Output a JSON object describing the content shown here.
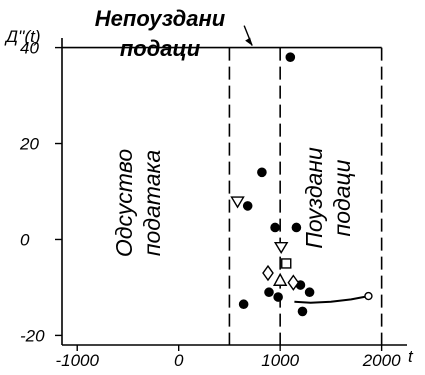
{
  "chart_data": {
    "type": "scatter",
    "title": "",
    "xlabel": "t",
    "ylabel": "Д''(t)",
    "xlim": [
      -1150,
      2250
    ],
    "ylim": [
      -22,
      42
    ],
    "x_ticks": [
      -1000,
      0,
      1000,
      2000
    ],
    "x_tick_labels": [
      "-1000",
      "0",
      "1000",
      "2000"
    ],
    "y_ticks": [
      -20,
      0,
      20,
      40
    ],
    "y_tick_labels": [
      "-20",
      "0",
      "20",
      "40"
    ],
    "reference_line_y": 40,
    "dashed_lines_x": [
      500,
      1000,
      2000
    ],
    "annotation_unreliable": [
      "Непоуздани",
      "подаци"
    ],
    "annotation_arrow_target": [
      1000,
      40
    ],
    "region_no_data": [
      "Одсуство",
      "података"
    ],
    "region_reliable": [
      "Поуздани",
      "подаци"
    ],
    "series": [
      {
        "marker": "filled-circle",
        "points": [
          [
            1100,
            38
          ],
          [
            820,
            14
          ],
          [
            680,
            7
          ],
          [
            950,
            2.5
          ],
          [
            1160,
            2.5
          ],
          [
            640,
            -13.5
          ],
          [
            890,
            -11
          ],
          [
            980,
            -12
          ],
          [
            1200,
            -9.5
          ],
          [
            1290,
            -11
          ],
          [
            1220,
            -15
          ]
        ]
      },
      {
        "marker": "open-triangle-down",
        "points": [
          [
            580,
            8
          ],
          [
            1010,
            -1.5
          ]
        ]
      },
      {
        "marker": "open-triangle-up",
        "points": [
          [
            1000,
            -8.5
          ]
        ]
      },
      {
        "marker": "open-diamond",
        "points": [
          [
            880,
            -7
          ],
          [
            1130,
            -9
          ]
        ]
      },
      {
        "marker": "open-square",
        "points": [
          [
            1060,
            -5
          ]
        ]
      },
      {
        "marker": "line",
        "points": [
          [
            1140,
            -13
          ],
          [
            1300,
            -13.2
          ],
          [
            1500,
            -13
          ],
          [
            1700,
            -12.5
          ],
          [
            1870,
            -11.8
          ]
        ]
      },
      {
        "marker": "open-circle",
        "points": [
          [
            1870,
            -11.8
          ]
        ]
      }
    ]
  }
}
